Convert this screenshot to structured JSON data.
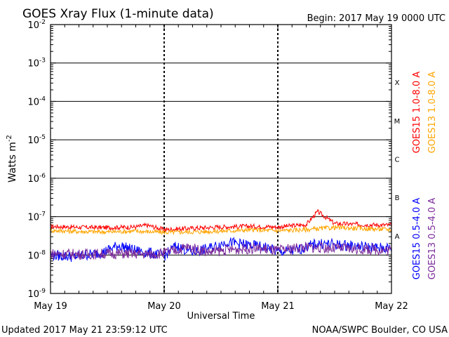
{
  "chart_data": {
    "type": "line",
    "title": "GOES Xray Flux (1-minute data)",
    "begin_label": "Begin:  2017 May 19 0000 UTC",
    "ylabel_base": "Watts m",
    "ylabel_sup": "-2",
    "xlabel": "Universal Time",
    "y_scale": "log",
    "ylim": [
      1e-09,
      0.01
    ],
    "y_ticks": [
      {
        "base": "10",
        "exp": "-2"
      },
      {
        "base": "10",
        "exp": "-3"
      },
      {
        "base": "10",
        "exp": "-4"
      },
      {
        "base": "10",
        "exp": "-5"
      },
      {
        "base": "10",
        "exp": "-6"
      },
      {
        "base": "10",
        "exp": "-7"
      },
      {
        "base": "10",
        "exp": "-8"
      },
      {
        "base": "10",
        "exp": "-9"
      }
    ],
    "x_ticks": [
      "May 19",
      "May 20",
      "May 21",
      "May 22"
    ],
    "xlim_days": [
      0,
      3
    ],
    "flare_classes": [
      "X",
      "M",
      "C",
      "B",
      "A"
    ],
    "series": [
      {
        "name": "GOES15 1.0-8.0 A",
        "color": "#ff0000",
        "x_days": [
          0,
          0.25,
          0.5,
          0.75,
          0.85,
          1.0,
          1.25,
          1.5,
          1.75,
          2.0,
          2.25,
          2.35,
          2.5,
          2.75,
          3.0
        ],
        "y": [
          5.6e-08,
          5.3e-08,
          5.2e-08,
          5.4e-08,
          6e-08,
          4.6e-08,
          5e-08,
          5.4e-08,
          5.6e-08,
          5.4e-08,
          6.2e-08,
          1.35e-07,
          6.6e-08,
          6.2e-08,
          6e-08
        ]
      },
      {
        "name": "GOES13 1.0-8.0 A",
        "color": "#ffa500",
        "x_days": [
          0,
          0.25,
          0.5,
          0.75,
          1.0,
          1.25,
          1.5,
          1.75,
          2.0,
          2.25,
          2.5,
          2.75,
          3.0
        ],
        "y": [
          4.4e-08,
          4.1e-08,
          4e-08,
          4.2e-08,
          3.9e-08,
          4e-08,
          4.2e-08,
          4.5e-08,
          4.3e-08,
          4.6e-08,
          5.2e-08,
          4.9e-08,
          4.6e-08
        ]
      },
      {
        "name": "GOES15 0.5-4.0 A",
        "color": "#0000ff",
        "x_days": [
          0,
          0.2,
          0.45,
          0.6,
          0.75,
          0.9,
          1.0,
          1.1,
          1.25,
          1.4,
          1.55,
          1.75,
          1.9,
          2.0,
          2.15,
          2.35,
          2.6,
          2.8,
          3.0
        ],
        "y": [
          1e-08,
          9e-09,
          1.15e-08,
          1.8e-08,
          1.3e-08,
          1.1e-08,
          9.5e-09,
          1.7e-08,
          1.2e-08,
          1.5e-08,
          2.2e-08,
          1.8e-08,
          1.6e-08,
          1.2e-08,
          1.3e-08,
          2e-08,
          1.8e-08,
          1.6e-08,
          1.5e-08
        ]
      },
      {
        "name": "GOES13 0.5-4.0 A",
        "color": "#7b2a9a",
        "x_days": [
          0,
          0.3,
          0.6,
          0.9,
          1.05,
          1.2,
          1.4,
          1.6,
          1.8,
          2.0,
          2.2,
          2.5,
          2.8,
          3.0
        ],
        "y": [
          1.1e-08,
          1.05e-08,
          1.1e-08,
          1.05e-08,
          1.2e-08,
          1.6e-08,
          1.2e-08,
          1.4e-08,
          1.5e-08,
          1.3e-08,
          1.6e-08,
          1.5e-08,
          1.4e-08,
          1.35e-08
        ]
      }
    ]
  },
  "footer": {
    "updated": "Updated 2017 May 21 23:59:12 UTC",
    "source": "NOAA/SWPC Boulder, CO USA"
  }
}
